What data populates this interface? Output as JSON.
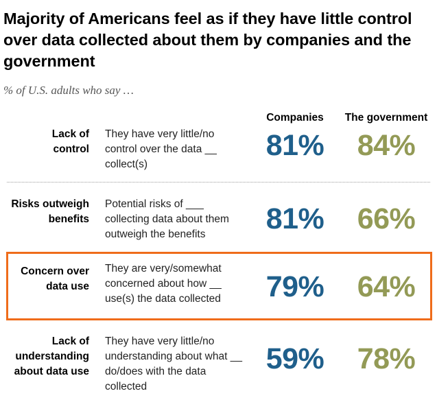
{
  "title": "Majority of Americans feel as if they have little control over data collected about them by companies and the government",
  "subtitle": "% of U.S. adults who say …",
  "columns": {
    "companies": "Companies",
    "government": "The government"
  },
  "colors": {
    "companies": "#1f5f8b",
    "government": "#939a56",
    "highlight": "#ef6c1a"
  },
  "rows": [
    {
      "label": "Lack of\ncontrol",
      "description": "They have very little/no control over the data __ collect(s)",
      "companies": "81%",
      "government": "84%"
    },
    {
      "label": "Risks outweigh\nbenefits",
      "description": "Potential risks of ___ collecting data about them outweigh the benefits",
      "companies": "81%",
      "government": "66%"
    },
    {
      "label": "Concern over\ndata use",
      "description": "They are very/somewhat concerned about how __ use(s) the data collected",
      "companies": "79%",
      "government": "64%"
    },
    {
      "label": "Lack of\nunderstanding\nabout data use",
      "description": "They have very little/no understanding about what __ do/does with the data collected",
      "companies": "59%",
      "government": "78%"
    }
  ],
  "chart_data": {
    "type": "table",
    "title": "Majority of Americans feel as if they have little control over data collected about them by companies and the government",
    "subtitle": "% of U.S. adults who say …",
    "categories": [
      "Lack of control",
      "Risks outweigh benefits",
      "Concern over data use",
      "Lack of understanding about data use"
    ],
    "series": [
      {
        "name": "Companies",
        "values": [
          81,
          81,
          79,
          59
        ]
      },
      {
        "name": "The government",
        "values": [
          84,
          66,
          64,
          78
        ]
      }
    ],
    "highlighted_category": "Concern over data use"
  }
}
